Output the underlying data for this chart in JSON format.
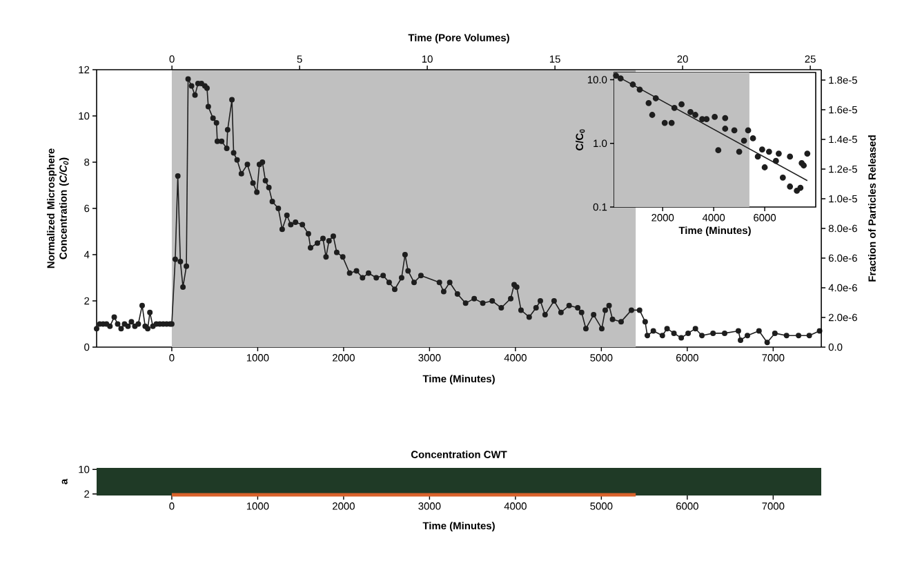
{
  "chart_data": [
    {
      "type": "line",
      "xlabel": "Time (Minutes)",
      "x2label": "Time (Pore Volumes)",
      "ylabel": "Normalized Microsphere Concentration (*C/C$_{0}$*)",
      "y2label": "Fraction of Particles Released",
      "marker": "circle",
      "x": [
        -875,
        -840,
        -800,
        -760,
        -720,
        -670,
        -630,
        -590,
        -550,
        -510,
        -470,
        -430,
        -390,
        -345,
        -310,
        -280,
        -255,
        -220,
        -180,
        -140,
        -100,
        -60,
        -20,
        0,
        40,
        70,
        100,
        130,
        170,
        190,
        230,
        270,
        305,
        345,
        385,
        410,
        425,
        480,
        520,
        530,
        580,
        640,
        650,
        700,
        720,
        760,
        810,
        880,
        945,
        990,
        1020,
        1055,
        1090,
        1130,
        1170,
        1240,
        1285,
        1340,
        1385,
        1440,
        1520,
        1590,
        1615,
        1695,
        1760,
        1795,
        1830,
        1880,
        1920,
        1990,
        2070,
        2150,
        2220,
        2290,
        2380,
        2460,
        2530,
        2595,
        2675,
        2715,
        2750,
        2820,
        2900,
        3115,
        3165,
        3235,
        3325,
        3420,
        3520,
        3620,
        3730,
        3835,
        3945,
        3985,
        4015,
        4065,
        4160,
        4240,
        4290,
        4345,
        4450,
        4530,
        4625,
        4725,
        4770,
        4820,
        4910,
        5005,
        5045,
        5090,
        5130,
        5230,
        5350,
        5445,
        5510,
        5535,
        5605,
        5710,
        5765,
        5845,
        5930,
        6010,
        6095,
        6170,
        6300,
        6435,
        6595,
        6620,
        6700,
        6835,
        6930,
        7020,
        7155,
        7295,
        7420,
        7540
      ],
      "series": [
        {
          "color": "#1e1e1e",
          "values": [
            0.8,
            1.0,
            1.0,
            1.0,
            0.9,
            1.3,
            1.0,
            0.8,
            1.0,
            0.9,
            1.1,
            0.9,
            1.0,
            1.8,
            0.9,
            0.8,
            1.5,
            0.9,
            1.0,
            1.0,
            1.0,
            1.0,
            1.0,
            1.0,
            3.8,
            7.4,
            3.7,
            2.6,
            3.5,
            11.6,
            11.3,
            10.9,
            11.4,
            11.4,
            11.3,
            11.2,
            10.4,
            9.9,
            9.7,
            8.9,
            8.9,
            8.6,
            9.4,
            10.7,
            8.4,
            8.1,
            7.5,
            7.9,
            7.1,
            6.7,
            7.9,
            8.0,
            7.2,
            6.9,
            6.3,
            6.0,
            5.1,
            5.7,
            5.3,
            5.4,
            5.3,
            4.9,
            4.3,
            4.5,
            4.7,
            3.9,
            4.6,
            4.8,
            4.1,
            3.9,
            3.2,
            3.3,
            3.0,
            3.2,
            3.0,
            3.1,
            2.8,
            2.5,
            3.0,
            4.0,
            3.3,
            2.8,
            3.1,
            2.8,
            2.4,
            2.8,
            2.3,
            1.9,
            2.1,
            1.9,
            2.0,
            1.7,
            2.1,
            2.7,
            2.6,
            1.6,
            1.3,
            1.7,
            2.0,
            1.4,
            2.0,
            1.5,
            1.8,
            1.7,
            1.5,
            0.8,
            1.4,
            0.8,
            1.6,
            1.8,
            1.2,
            1.1,
            1.6,
            1.6,
            1.1,
            0.5,
            0.7,
            0.5,
            0.8,
            0.6,
            0.4,
            0.6,
            0.8,
            0.5,
            0.6,
            0.6,
            0.7,
            0.3,
            0.5,
            0.7,
            0.2,
            0.6,
            0.5,
            0.5,
            0.5,
            0.7
          ]
        }
      ],
      "xlim": [
        -875,
        7560
      ],
      "ylim": [
        0,
        12
      ],
      "xticks": [
        0,
        1000,
        2000,
        3000,
        4000,
        5000,
        6000,
        7000
      ],
      "yticks": [
        0,
        2,
        4,
        6,
        8,
        10,
        12
      ],
      "x2lim": [
        -2.95,
        25.43
      ],
      "x2ticks": [
        0,
        5,
        10,
        15,
        20,
        25
      ],
      "y2lim": [
        0,
        1.87e-05
      ],
      "y2ticks": [
        {
          "value": 0,
          "label": "0.0"
        },
        {
          "value": 2e-06,
          "label": "2.0e-6"
        },
        {
          "value": 4e-06,
          "label": "4.0e-6"
        },
        {
          "value": 6e-06,
          "label": "6.0e-6"
        },
        {
          "value": 8e-06,
          "label": "8.0e-6"
        },
        {
          "value": 1e-05,
          "label": "1.0e-5"
        },
        {
          "value": 1.2e-05,
          "label": "1.2e-5"
        },
        {
          "value": 1.4e-05,
          "label": "1.4e-5"
        },
        {
          "value": 1.6e-05,
          "label": "1.6e-5"
        },
        {
          "value": 1.8e-05,
          "label": "1.8e-5"
        }
      ],
      "bands": [
        {
          "axis": "x",
          "from": 0,
          "to": 5400,
          "color": "#c0c0c0"
        }
      ]
    },
    {
      "type": "scatter",
      "xlabel": "Time (Minutes)",
      "ylabel": "C/C$_{0}$",
      "log": "y",
      "marker": "circle",
      "series": [
        {
          "color": "#1e1e1e",
          "x": [
            170,
            350,
            830,
            1100,
            1450,
            1590,
            1730,
            2080,
            2350,
            2460,
            2740,
            3090,
            3280,
            3550,
            3720,
            4040,
            4180,
            4450,
            4450,
            4810,
            5000,
            5190,
            5350,
            5540,
            5730,
            5900,
            6000,
            6170,
            6440,
            6550,
            6710,
            6990,
            6990,
            7260,
            7400,
            7450,
            7530,
            7670
          ],
          "values": [
            11.6,
            10.5,
            8.4,
            7.0,
            4.3,
            2.8,
            5.1,
            2.1,
            2.1,
            3.6,
            4.1,
            3.1,
            2.8,
            2.4,
            2.4,
            2.6,
            0.78,
            2.5,
            1.7,
            1.6,
            0.74,
            1.1,
            1.6,
            1.2,
            0.62,
            0.8,
            0.42,
            0.74,
            0.53,
            0.69,
            0.29,
            0.21,
            0.62,
            0.18,
            0.2,
            0.49,
            0.45,
            0.69
          ]
        },
        {
          "type": "line",
          "marker": "none",
          "color": "#1e1e1e",
          "x": [
            100,
            7670
          ],
          "values": [
            12,
            0.26
          ]
        }
      ],
      "xlim": [
        100,
        8000
      ],
      "ylim": [
        0.1,
        13
      ],
      "xticks": [
        2000,
        4000,
        6000
      ],
      "yticks": [
        {
          "value": 0.1,
          "label": "0.1"
        },
        {
          "value": 1,
          "label": "1.0"
        },
        {
          "value": 10,
          "label": "10.0"
        }
      ],
      "bands": [
        {
          "axis": "x",
          "from": 0,
          "to": 5400,
          "color": "#c0c0c0"
        }
      ]
    },
    {
      "type": "line",
      "title": "Concentration CWT",
      "xlabel": "Time (Minutes)",
      "ylabel": "a",
      "series": [
        {
          "color": "#d9622b",
          "x": [
            0,
            5400
          ],
          "values": [
            1.7,
            1.7
          ]
        }
      ],
      "xlim": [
        -875,
        7560
      ],
      "ylim": [
        1.5,
        10.5
      ],
      "xticks": [
        0,
        1000,
        2000,
        3000,
        4000,
        5000,
        6000,
        7000
      ],
      "yticks": [
        2,
        10
      ]
    }
  ]
}
